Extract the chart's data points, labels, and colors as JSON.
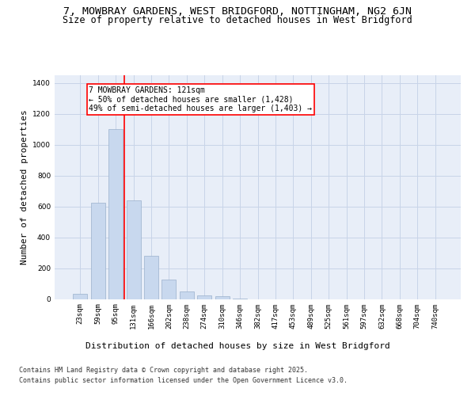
{
  "title_line1": "7, MOWBRAY GARDENS, WEST BRIDGFORD, NOTTINGHAM, NG2 6JN",
  "title_line2": "Size of property relative to detached houses in West Bridgford",
  "xlabel": "Distribution of detached houses by size in West Bridgford",
  "ylabel": "Number of detached properties",
  "categories": [
    "23sqm",
    "59sqm",
    "95sqm",
    "131sqm",
    "166sqm",
    "202sqm",
    "238sqm",
    "274sqm",
    "310sqm",
    "346sqm",
    "382sqm",
    "417sqm",
    "453sqm",
    "489sqm",
    "525sqm",
    "561sqm",
    "597sqm",
    "632sqm",
    "668sqm",
    "704sqm",
    "740sqm"
  ],
  "values": [
    35,
    625,
    1100,
    640,
    280,
    125,
    50,
    25,
    20,
    5,
    0,
    0,
    0,
    0,
    0,
    0,
    0,
    0,
    0,
    0,
    0
  ],
  "bar_color": "#c8d8ee",
  "bar_edge_color": "#9ab0cc",
  "grid_color": "#c8d4e8",
  "background_color": "#e8eef8",
  "vline_color": "red",
  "vline_x_index": 2.5,
  "annotation_text": "7 MOWBRAY GARDENS: 121sqm\n← 50% of detached houses are smaller (1,428)\n49% of semi-detached houses are larger (1,403) →",
  "ylim": [
    0,
    1450
  ],
  "yticks": [
    0,
    200,
    400,
    600,
    800,
    1000,
    1200,
    1400
  ],
  "footer_line1": "Contains HM Land Registry data © Crown copyright and database right 2025.",
  "footer_line2": "Contains public sector information licensed under the Open Government Licence v3.0.",
  "title_fontsize": 9.5,
  "subtitle_fontsize": 8.5,
  "ylabel_fontsize": 8,
  "xlabel_fontsize": 8,
  "tick_fontsize": 6.5,
  "annotation_fontsize": 7,
  "footer_fontsize": 6
}
